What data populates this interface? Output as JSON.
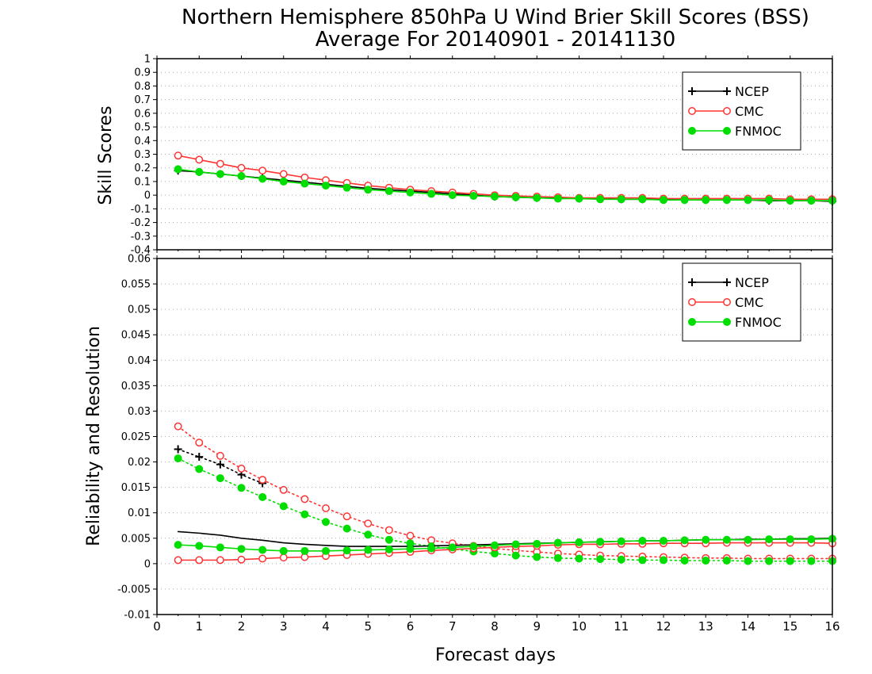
{
  "chart_data": [
    {
      "type": "line",
      "title": "Northern Hemisphere 850hPa U Wind Brier Skill Scores (BSS)",
      "subtitle": "Average For 20140901 - 20141130",
      "xlabel": "",
      "ylabel": "Skill Scores",
      "xlim": [
        0,
        16
      ],
      "ylim": [
        -0.4,
        1
      ],
      "x_ticks": [
        "0",
        "1",
        "2",
        "3",
        "4",
        "5",
        "6",
        "7",
        "8",
        "9",
        "10",
        "11",
        "12",
        "13",
        "14",
        "15",
        "16"
      ],
      "y_ticks": [
        "-0.4",
        "-0.3",
        "-0.2",
        "-0.1",
        "0",
        "0.1",
        "0.2",
        "0.3",
        "0.4",
        "0.5",
        "0.6",
        "0.7",
        "0.8",
        "0.9",
        "1"
      ],
      "grid": true,
      "legend_position": "top-right",
      "x": [
        0.5,
        1,
        1.5,
        2,
        2.5,
        3,
        3.5,
        4,
        4.5,
        5,
        5.5,
        6,
        6.5,
        7,
        7.5,
        8,
        8.5,
        9,
        9.5,
        10,
        10.5,
        11,
        11.5,
        12,
        12.5,
        13,
        13.5,
        14,
        14.5,
        15,
        15.5,
        16
      ],
      "series": [
        {
          "name": "NCEP",
          "color": "#000000",
          "marker": "plus",
          "style": "solid",
          "values": [
            0.18,
            0.17,
            0.155,
            0.14,
            0.125,
            0.11,
            0.095,
            0.08,
            0.065,
            0.05,
            0.04,
            0.03,
            0.02,
            0.01,
            0.0,
            -0.01,
            -0.015,
            -0.02,
            -0.02,
            -0.025,
            -0.025,
            -0.03,
            -0.03,
            -0.03,
            -0.035,
            -0.035,
            -0.035,
            -0.035,
            -0.04,
            -0.04,
            -0.04,
            -0.045
          ]
        },
        {
          "name": "CMC",
          "color": "#ff3333",
          "marker": "open-circle",
          "style": "solid",
          "values": [
            0.29,
            0.26,
            0.23,
            0.2,
            0.18,
            0.155,
            0.13,
            0.11,
            0.09,
            0.07,
            0.055,
            0.04,
            0.03,
            0.02,
            0.01,
            0.0,
            -0.005,
            -0.01,
            -0.015,
            -0.02,
            -0.02,
            -0.02,
            -0.02,
            -0.025,
            -0.025,
            -0.025,
            -0.025,
            -0.025,
            -0.025,
            -0.03,
            -0.03,
            -0.03
          ]
        },
        {
          "name": "FNMOC",
          "color": "#00dd00",
          "marker": "filled-circle",
          "style": "solid",
          "values": [
            0.19,
            0.17,
            0.155,
            0.14,
            0.12,
            0.1,
            0.085,
            0.07,
            0.055,
            0.04,
            0.03,
            0.02,
            0.01,
            0.0,
            -0.005,
            -0.01,
            -0.015,
            -0.02,
            -0.025,
            -0.025,
            -0.03,
            -0.03,
            -0.03,
            -0.035,
            -0.035,
            -0.035,
            -0.035,
            -0.035,
            -0.035,
            -0.04,
            -0.04,
            -0.04
          ]
        }
      ]
    },
    {
      "type": "line",
      "title": "",
      "xlabel": "Forecast days",
      "ylabel": "Reliability and Resolution",
      "xlim": [
        0,
        16
      ],
      "ylim": [
        -0.01,
        0.06
      ],
      "x_ticks": [
        "0",
        "1",
        "2",
        "3",
        "4",
        "5",
        "6",
        "7",
        "8",
        "9",
        "10",
        "11",
        "12",
        "13",
        "14",
        "15",
        "16"
      ],
      "y_ticks": [
        "-0.01",
        "-0.005",
        "0",
        "0.005",
        "0.01",
        "0.015",
        "0.02",
        "0.025",
        "0.03",
        "0.035",
        "0.04",
        "0.045",
        "0.05",
        "0.055",
        "0.06"
      ],
      "grid": true,
      "legend_position": "top-right",
      "x": [
        0.5,
        1,
        1.5,
        2,
        2.5,
        3,
        3.5,
        4,
        4.5,
        5,
        5.5,
        6,
        6.5,
        7,
        7.5,
        8,
        8.5,
        9,
        9.5,
        10,
        10.5,
        11,
        11.5,
        12,
        12.5,
        13,
        13.5,
        14,
        14.5,
        15,
        15.5,
        16
      ],
      "series": [
        {
          "name": "NCEP",
          "color": "#000000",
          "marker": "plus",
          "style": "dotted",
          "values": [
            0.0225,
            0.021,
            0.0195,
            0.0175,
            0.0158,
            null,
            null,
            null,
            null,
            null,
            null,
            null,
            null,
            null,
            null,
            null,
            null,
            null,
            null,
            null,
            null,
            null,
            null,
            null,
            null,
            null,
            null,
            null,
            null,
            null,
            null,
            null
          ]
        },
        {
          "name": "CMC",
          "color": "#ff3333",
          "marker": "open-circle",
          "style": "dotted",
          "values": [
            0.027,
            0.0238,
            0.0212,
            0.0187,
            0.0165,
            0.0145,
            0.0127,
            0.0109,
            0.0093,
            0.0079,
            0.0066,
            0.0055,
            0.0046,
            0.004,
            0.0035,
            0.003,
            0.0026,
            0.0023,
            0.002,
            0.0018,
            0.0016,
            0.0015,
            0.0014,
            0.0013,
            0.0012,
            0.0011,
            0.0011,
            0.001,
            0.001,
            0.001,
            0.001,
            0.001
          ]
        },
        {
          "name": "FNMOC",
          "color": "#00dd00",
          "marker": "filled-circle",
          "style": "dotted",
          "values": [
            0.0207,
            0.0186,
            0.0168,
            0.0149,
            0.0131,
            0.0113,
            0.0097,
            0.0082,
            0.0069,
            0.0057,
            0.0047,
            0.004,
            0.0034,
            0.0029,
            0.0024,
            0.002,
            0.0016,
            0.0013,
            0.0011,
            0.001,
            0.0009,
            0.0008,
            0.0007,
            0.0007,
            0.0006,
            0.0006,
            0.0006,
            0.0005,
            0.0005,
            0.0005,
            0.0005,
            0.0005
          ]
        },
        {
          "name": "NCEP",
          "color": "#000000",
          "marker": "none",
          "style": "solid",
          "values": [
            0.0063,
            0.006,
            0.0056,
            0.005,
            0.0046,
            0.0041,
            0.0038,
            0.0036,
            0.0034,
            0.0034,
            0.0034,
            0.0034,
            0.0035,
            0.0036,
            0.0037,
            0.0038,
            0.0039,
            0.004,
            0.0041,
            0.0042,
            0.0043,
            0.0044,
            0.0045,
            0.0045,
            0.0046,
            0.0047,
            0.0047,
            0.0048,
            0.0048,
            0.0049,
            0.0049,
            0.005
          ]
        },
        {
          "name": "CMC",
          "color": "#ff3333",
          "marker": "open-circle",
          "style": "solid",
          "values": [
            0.0007,
            0.0007,
            0.0007,
            0.0008,
            0.001,
            0.0012,
            0.0013,
            0.0015,
            0.0017,
            0.0019,
            0.0021,
            0.0023,
            0.0026,
            0.0028,
            0.003,
            0.0032,
            0.0034,
            0.0035,
            0.0037,
            0.0038,
            0.0038,
            0.0039,
            0.0039,
            0.004,
            0.004,
            0.004,
            0.0041,
            0.0041,
            0.0041,
            0.0041,
            0.0041,
            0.004
          ]
        },
        {
          "name": "FNMOC",
          "color": "#00dd00",
          "marker": "filled-circle",
          "style": "solid",
          "values": [
            0.0037,
            0.0035,
            0.0032,
            0.0029,
            0.0027,
            0.0025,
            0.0025,
            0.0025,
            0.0026,
            0.0027,
            0.0028,
            0.0029,
            0.003,
            0.0032,
            0.0034,
            0.0036,
            0.0038,
            0.0039,
            0.0041,
            0.0042,
            0.0043,
            0.0044,
            0.0045,
            0.0045,
            0.0046,
            0.0047,
            0.0047,
            0.0047,
            0.0048,
            0.0048,
            0.0048,
            0.0049
          ]
        }
      ]
    }
  ],
  "legend": {
    "items": [
      {
        "name": "NCEP",
        "color": "#000000",
        "marker": "plus"
      },
      {
        "name": "CMC",
        "color": "#ff3333",
        "marker": "open-circle"
      },
      {
        "name": "FNMOC",
        "color": "#00dd00",
        "marker": "filled-circle"
      }
    ]
  }
}
